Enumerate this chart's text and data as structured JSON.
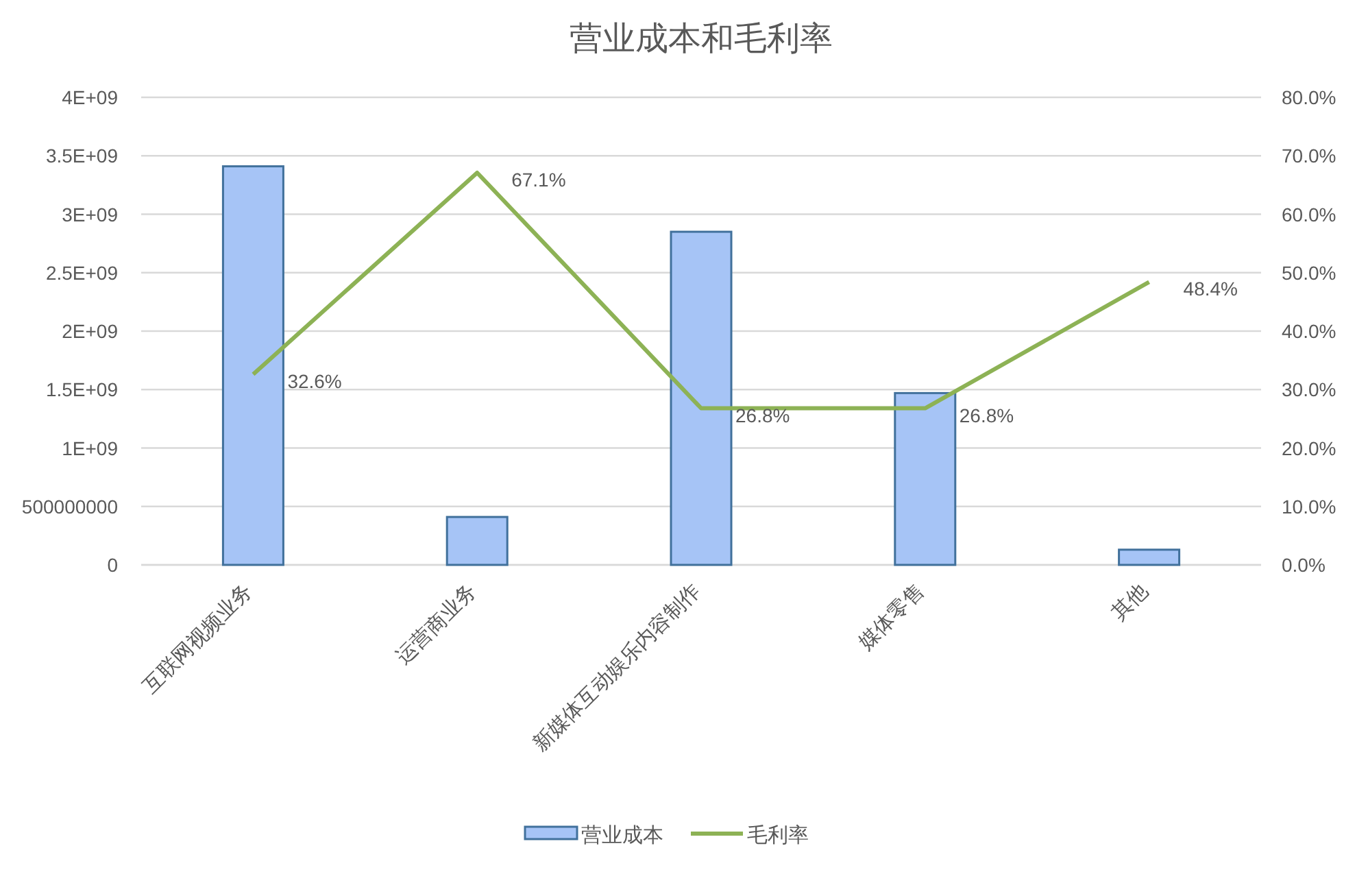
{
  "chart_data": {
    "type": "bar",
    "title": "营业成本和毛利率",
    "categories": [
      "互联网视频业务",
      "运营商业务",
      "新媒体互动娱乐内容制作",
      "媒体零售",
      "其他"
    ],
    "series": [
      {
        "name": "营业成本",
        "color": "#a6c4f6",
        "values": [
          3410000000,
          410000000,
          2850000000,
          1470000000,
          130000000
        ]
      },
      {
        "name": "毛利率",
        "type": "line",
        "axis": "y2",
        "color": "#8db255",
        "values": [
          32.6,
          67.1,
          26.8,
          26.8,
          48.4
        ],
        "value_labels": [
          "32.6%",
          "67.1%",
          "26.8%",
          "26.8%",
          "48.4%"
        ]
      }
    ],
    "ylim": [
      0,
      4000000000
    ],
    "yticks": [
      0,
      500000000,
      {
        "value": 1000000000,
        "label": "1E+09"
      },
      {
        "value": 1500000000,
        "label": "1.5E+09"
      },
      {
        "value": 2000000000,
        "label": "2E+09"
      },
      {
        "value": 2500000000,
        "label": "2.5E+09"
      },
      {
        "value": 3000000000,
        "label": "3E+09"
      },
      {
        "value": 3500000000,
        "label": "3.5E+09"
      },
      {
        "value": 4000000000,
        "label": "4E+09"
      }
    ],
    "y2lim": [
      0,
      80
    ],
    "y2ticks": [
      {
        "value": 0,
        "label": "0.0%"
      },
      {
        "value": 10,
        "label": "10.0%"
      },
      {
        "value": 20,
        "label": "20.0%"
      },
      {
        "value": 30,
        "label": "30.0%"
      },
      {
        "value": 40,
        "label": "40.0%"
      },
      {
        "value": 50,
        "label": "50.0%"
      },
      {
        "value": 60,
        "label": "60.0%"
      },
      {
        "value": 70,
        "label": "70.0%"
      },
      {
        "value": 80,
        "label": "80.0%"
      }
    ],
    "grid": "y",
    "legend": "bottom"
  }
}
